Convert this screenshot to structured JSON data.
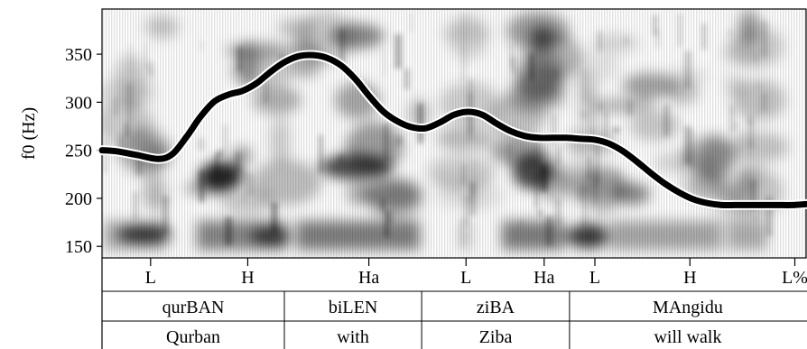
{
  "chart_data": {
    "type": "line",
    "ylabel": "f0 (Hz)",
    "ylim": [
      138,
      397
    ],
    "yticks": [
      150,
      200,
      250,
      300,
      350
    ],
    "xlim": [
      0,
      1
    ],
    "grid": false,
    "legend": "none",
    "background": "spectrogram",
    "series": [
      {
        "x": [
          0.0,
          0.02,
          0.05,
          0.08,
          0.1,
          0.12,
          0.14,
          0.16,
          0.18,
          0.2,
          0.22,
          0.24,
          0.26,
          0.28,
          0.3,
          0.32,
          0.34,
          0.36,
          0.38,
          0.4,
          0.42,
          0.44,
          0.46,
          0.48,
          0.5,
          0.52,
          0.54,
          0.56,
          0.58,
          0.6,
          0.62,
          0.64,
          0.66,
          0.68,
          0.7,
          0.72,
          0.74,
          0.76,
          0.78,
          0.8,
          0.82,
          0.84,
          0.86,
          0.88,
          0.9,
          0.92,
          0.94,
          0.96,
          0.98,
          1.0
        ],
        "y": [
          250,
          249,
          245,
          241,
          246,
          264,
          285,
          301,
          308,
          312,
          320,
          332,
          342,
          348,
          349,
          346,
          338,
          324,
          306,
          290,
          280,
          274,
          273,
          279,
          287,
          290,
          287,
          278,
          270,
          265,
          263,
          263,
          263,
          262,
          261,
          257,
          249,
          238,
          226,
          215,
          206,
          199,
          195,
          193,
          193,
          193,
          193,
          193,
          193,
          194
        ]
      }
    ]
  },
  "tiers": {
    "tones": {
      "labels": [
        "L",
        "H",
        "Ha",
        "L",
        "Ha",
        "L",
        "H",
        "L%"
      ],
      "positions": [
        0.069,
        0.207,
        0.379,
        0.517,
        0.628,
        0.7,
        0.835,
        0.984
      ]
    },
    "words": {
      "labels": [
        "qurBAN",
        "biLEN",
        "ziBA",
        "MAngidu"
      ],
      "bounds": [
        0.0,
        0.259,
        0.454,
        0.664,
        1.0
      ]
    },
    "glosses": {
      "labels": [
        "Qurban",
        "with",
        "Ziba",
        "will walk"
      ],
      "bounds": [
        0.0,
        0.259,
        0.454,
        0.664,
        1.0
      ]
    }
  }
}
